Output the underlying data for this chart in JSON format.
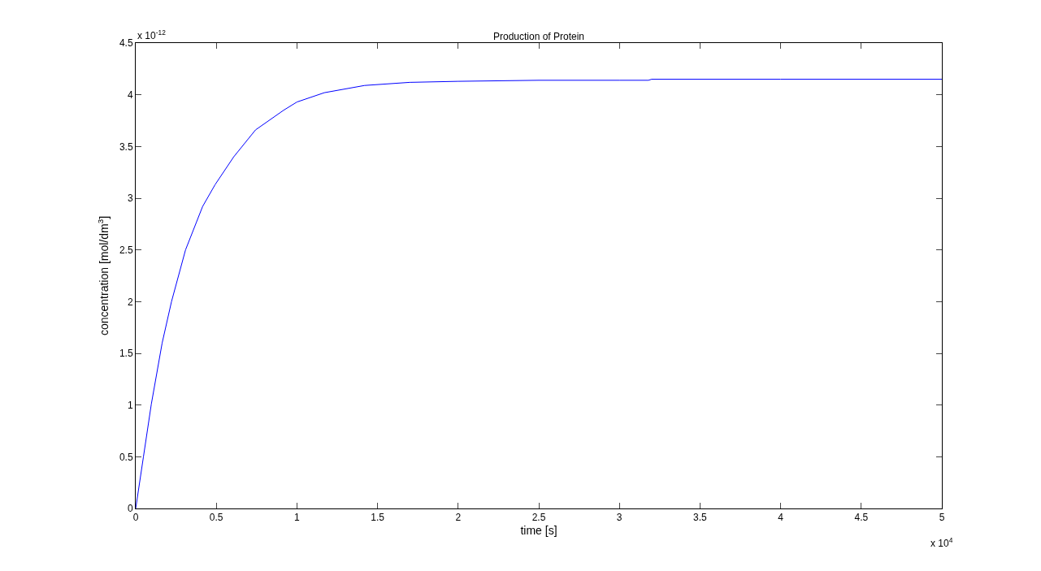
{
  "chart_data": {
    "type": "line",
    "title": "Production of Protein",
    "xlabel": "time [s]",
    "ylabel": "concentration [mol/dm$^{3}$]",
    "annotations": [
      "x 10$^{4}$",
      "x 10$^{-12}$"
    ],
    "x": [
      0,
      0.048,
      0.097,
      0.164,
      0.222,
      0.309,
      0.415,
      0.492,
      0.608,
      0.743,
      0.917,
      1.0,
      1.17,
      1.42,
      1.7,
      2.0,
      2.5,
      3.0,
      3.18,
      3.2,
      4.0,
      5.0
    ],
    "series": [
      {
        "color": "#0000ff",
        "values": [
          0,
          0.5,
          1.01,
          1.6,
          2.0,
          2.5,
          2.92,
          3.13,
          3.4,
          3.66,
          3.85,
          3.93,
          4.02,
          4.09,
          4.12,
          4.13,
          4.14,
          4.14,
          4.14,
          4.15,
          4.15,
          4.15
        ]
      }
    ],
    "xlim": [
      0,
      5
    ],
    "xticks": [
      0,
      0.5,
      1,
      1.5,
      2,
      2.5,
      3,
      3.5,
      4,
      4.5,
      5
    ],
    "ylim": [
      0,
      4.5
    ],
    "yticks": [
      0,
      0.5,
      1,
      1.5,
      2,
      2.5,
      3,
      3.5,
      4,
      4.5
    ],
    "grid": false,
    "legend": false,
    "marker": "none",
    "line_style": "solid"
  }
}
